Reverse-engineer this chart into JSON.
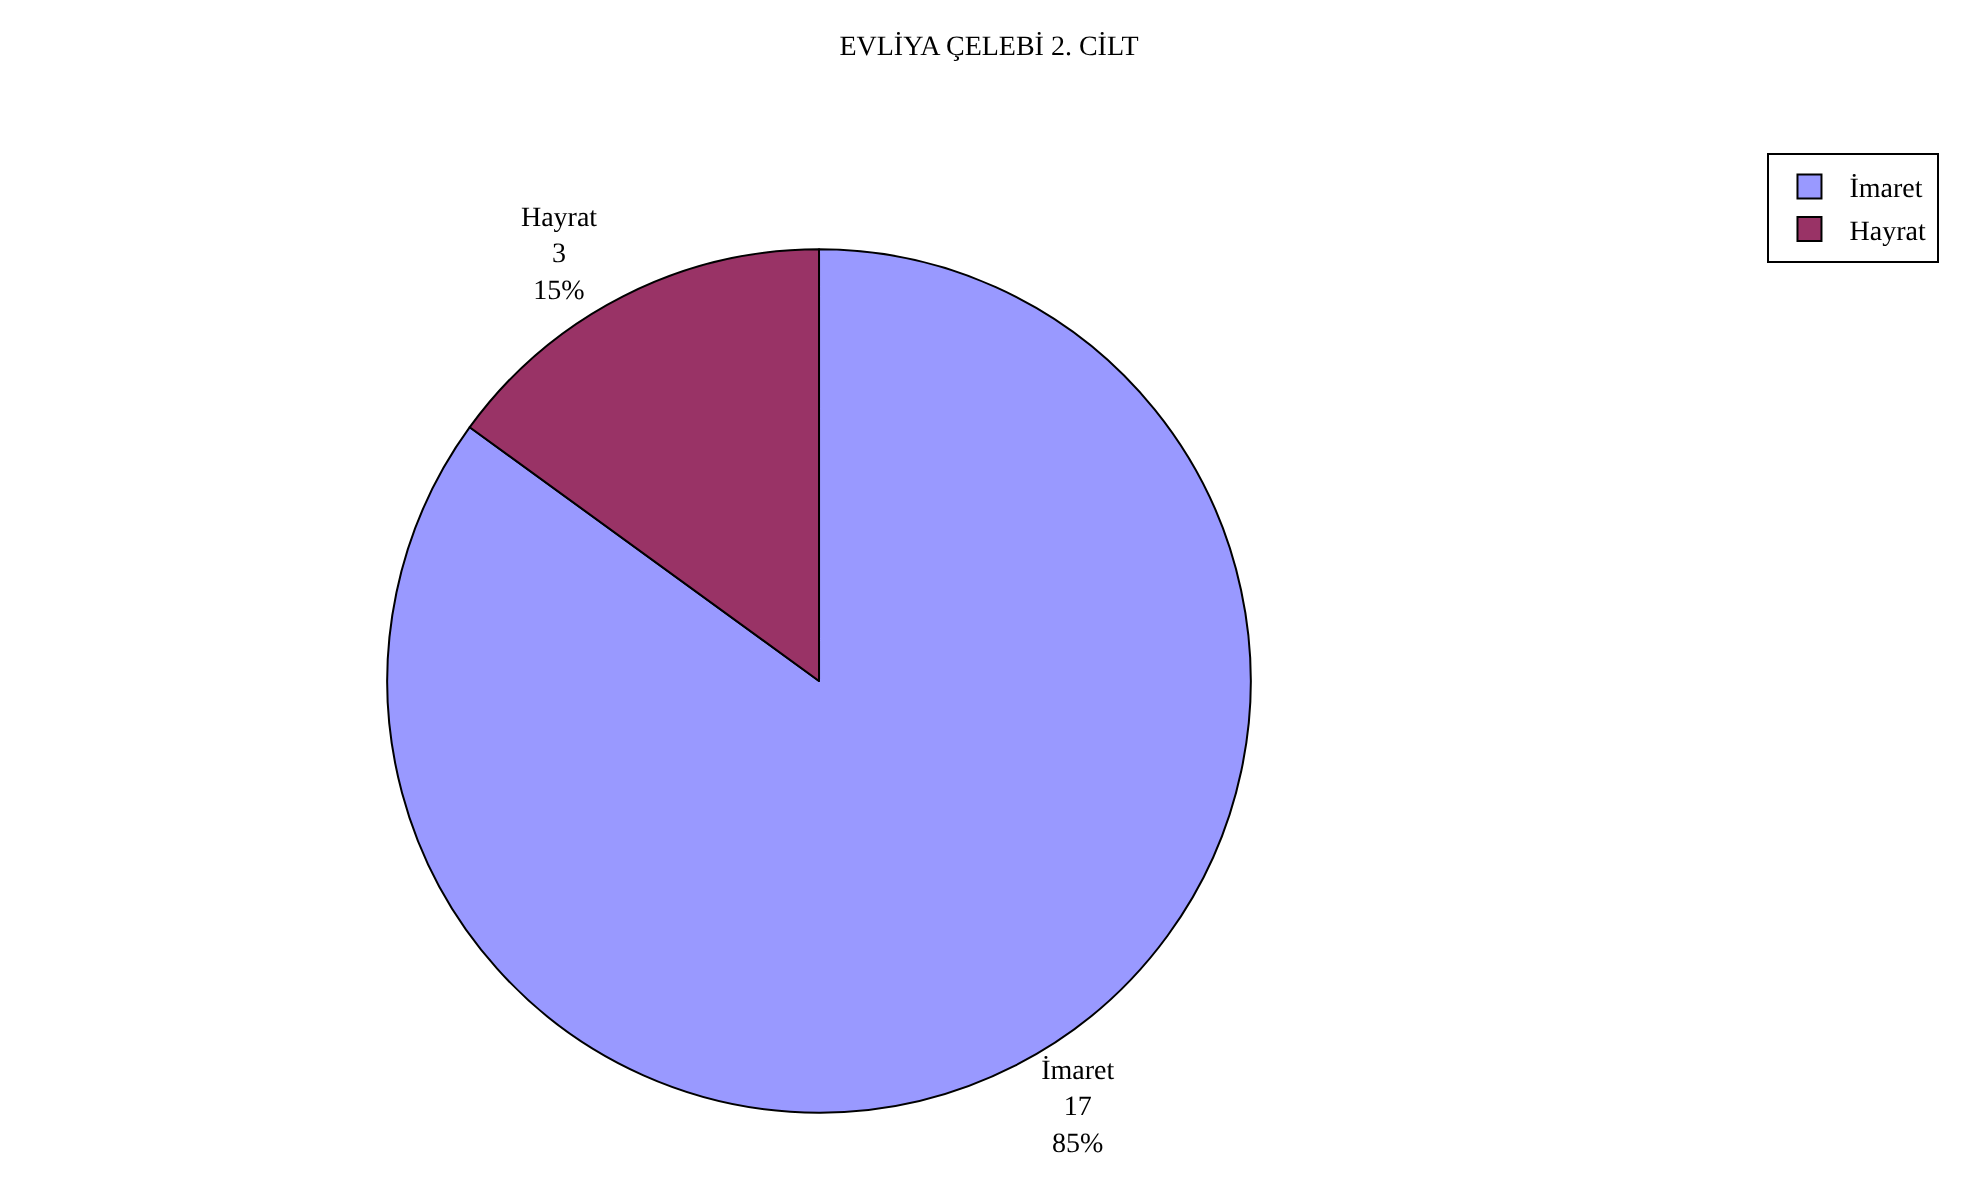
{
  "chart_data": {
    "type": "pie",
    "title": "EVLİYA ÇELEBİ 2. CİLT",
    "categories": [
      "İmaret",
      "Hayrat"
    ],
    "values": [
      17,
      3
    ],
    "colors": [
      "#9999ff",
      "#993366"
    ],
    "value_labels": [
      "İmaret\n17\n85%",
      "Hayrat\n3\n15%"
    ],
    "legend": "top right"
  }
}
